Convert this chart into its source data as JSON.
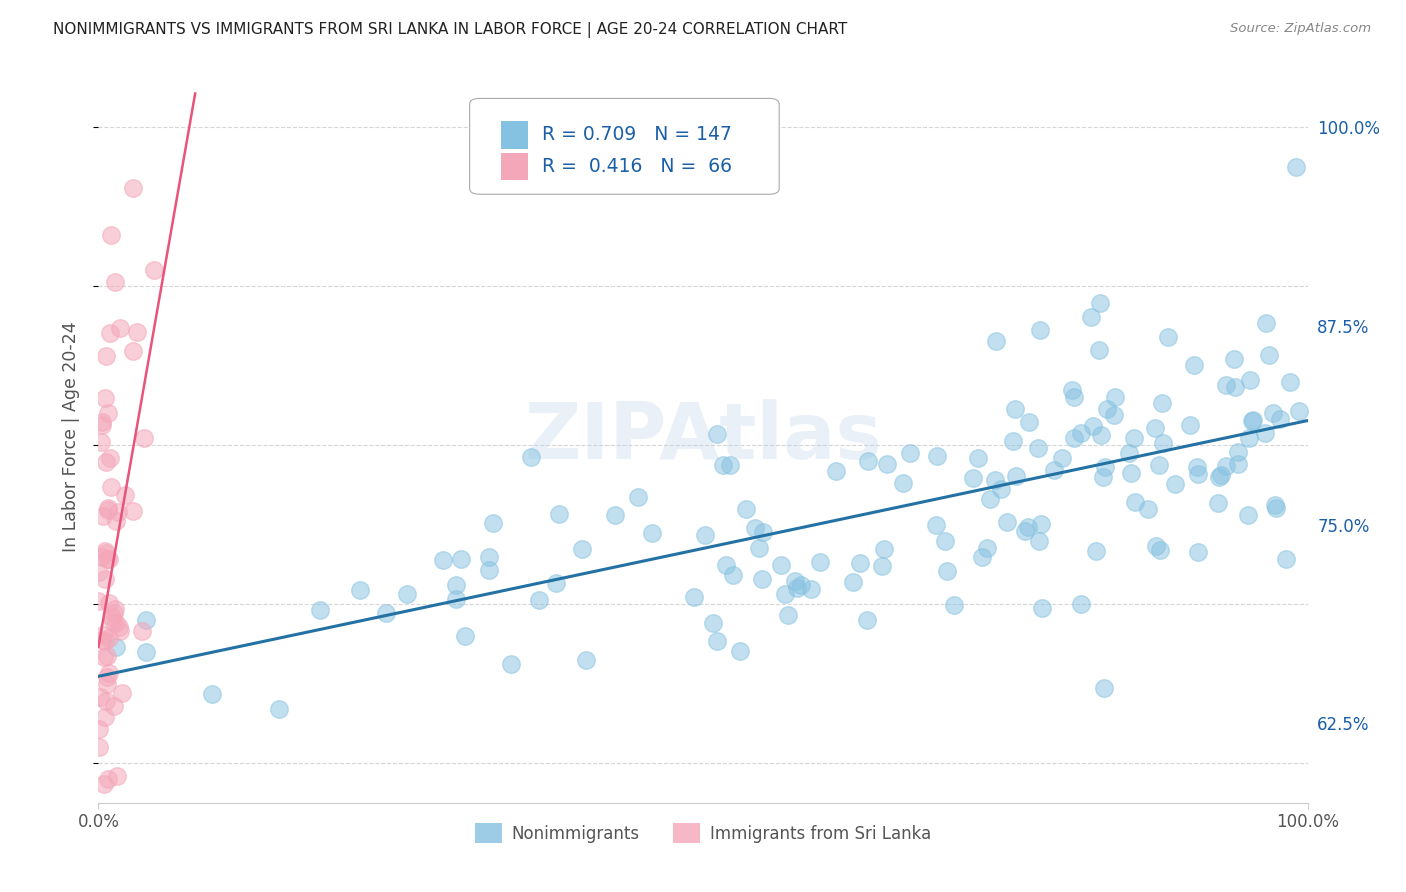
{
  "title": "NONIMMIGRANTS VS IMMIGRANTS FROM SRI LANKA IN LABOR FORCE | AGE 20-24 CORRELATION CHART",
  "source": "Source: ZipAtlas.com",
  "ylabel": "In Labor Force | Age 20-24",
  "legend_labels": [
    "Nonimmigrants",
    "Immigrants from Sri Lanka"
  ],
  "blue_R": "0.709",
  "blue_N": "147",
  "pink_R": "0.416",
  "pink_N": "66",
  "blue_color": "#85c1e0",
  "pink_color": "#f4a7b9",
  "blue_line_color": "#2472a4",
  "pink_line_color": "#e8547a",
  "watermark": "ZIPAtlas",
  "background_color": "#ffffff",
  "grid_color": "#cccccc",
  "title_color": "#222222",
  "label_color": "#555555",
  "R_N_color": "#1a5fa8",
  "x_min": 0.0,
  "x_max": 1.0,
  "y_min": 0.575,
  "y_max": 1.035,
  "blue_scatter_seed": 42,
  "pink_scatter_seed": 7,
  "n_blue": 147,
  "n_pink": 66
}
